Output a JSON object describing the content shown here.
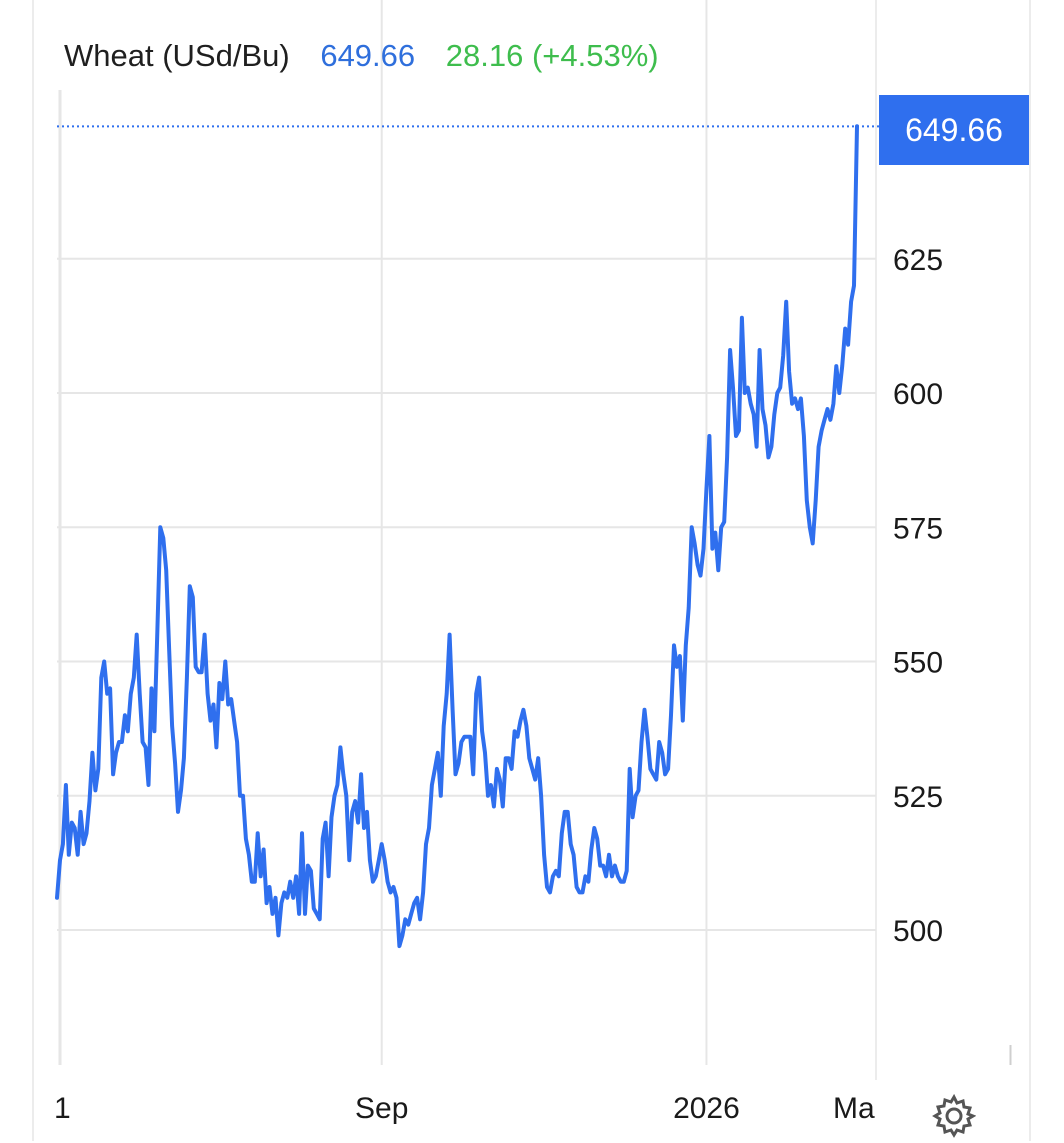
{
  "header": {
    "instrument": "Wheat (USd/Bu)",
    "price": "649.66",
    "change": "28.16 (+4.53%)"
  },
  "price_tag": "649.66",
  "colors": {
    "line": "#2f6fee",
    "price_text": "#2f6fdc",
    "change_text": "#3ebd4d",
    "grid": "#e6e6e6"
  },
  "icons": {
    "settings": "gear-icon"
  },
  "chart_data": {
    "type": "line",
    "title": "Wheat (USd/Bu)",
    "xlabel": "",
    "ylabel": "",
    "ylim": [
      480,
      650
    ],
    "yticks": [
      500,
      525,
      550,
      575,
      600,
      625
    ],
    "xticks": [
      {
        "label": "1",
        "index": 0
      },
      {
        "label": "Sep",
        "index": 110
      },
      {
        "label": "2026",
        "index": 220
      },
      {
        "label": "Ma",
        "index": 323
      }
    ],
    "current_value": 649.66,
    "grid": true,
    "series": [
      {
        "values": [
          506,
          513,
          516,
          527,
          514,
          520,
          519,
          514,
          522,
          516,
          518,
          524,
          533,
          526,
          530,
          547,
          550,
          544,
          545,
          529,
          533,
          535,
          535,
          540,
          537,
          544,
          547,
          555,
          544,
          535,
          534,
          527,
          545,
          537,
          556,
          575,
          573,
          567,
          552,
          538,
          531,
          522,
          526,
          532,
          547,
          564,
          562,
          549,
          548,
          548,
          555,
          544,
          539,
          542,
          534,
          546,
          543,
          550,
          542,
          543,
          539,
          535,
          525,
          525,
          517,
          514,
          509,
          509,
          518,
          510,
          515,
          505,
          508,
          503,
          506,
          499,
          505,
          507,
          506,
          509,
          506,
          510,
          503,
          518,
          503,
          512,
          511,
          504,
          503,
          502,
          517,
          520,
          510,
          521,
          525,
          527,
          534,
          529,
          525,
          513,
          522,
          524,
          520,
          529,
          519,
          522,
          513,
          509,
          510,
          513,
          516,
          513,
          509,
          507,
          508,
          506,
          497,
          499,
          502,
          501,
          503,
          505,
          506,
          502,
          507,
          516,
          519,
          527,
          530,
          533,
          525,
          538,
          544,
          555,
          541,
          529,
          531,
          535,
          536,
          536,
          536,
          529,
          544,
          547,
          537,
          533,
          525,
          527,
          523,
          530,
          528,
          523,
          532,
          532,
          530,
          537,
          536,
          539,
          541,
          538,
          532,
          530,
          528,
          532,
          525,
          514,
          508,
          507,
          510,
          511,
          510,
          518,
          522,
          522,
          516,
          514,
          508,
          507,
          507,
          510,
          509,
          515,
          519,
          517,
          512,
          512,
          510,
          514,
          510,
          512,
          510,
          509,
          509,
          511,
          530,
          521,
          525,
          526,
          535,
          541,
          536,
          530,
          529,
          528,
          535,
          533,
          529,
          530,
          540,
          553,
          549,
          551,
          539,
          553,
          560,
          575,
          572,
          568,
          566,
          571,
          582,
          592,
          571,
          574,
          567,
          575,
          576,
          588,
          608,
          601,
          592,
          593,
          614,
          600,
          601,
          598,
          596,
          590,
          608,
          597,
          594,
          588,
          590,
          596,
          600,
          601,
          607,
          617,
          604,
          598,
          599,
          597,
          599,
          592,
          580,
          575,
          572,
          580,
          590,
          593,
          595,
          597,
          595,
          598,
          605,
          600,
          605,
          612,
          609,
          617,
          620,
          649.66
        ]
      }
    ]
  }
}
